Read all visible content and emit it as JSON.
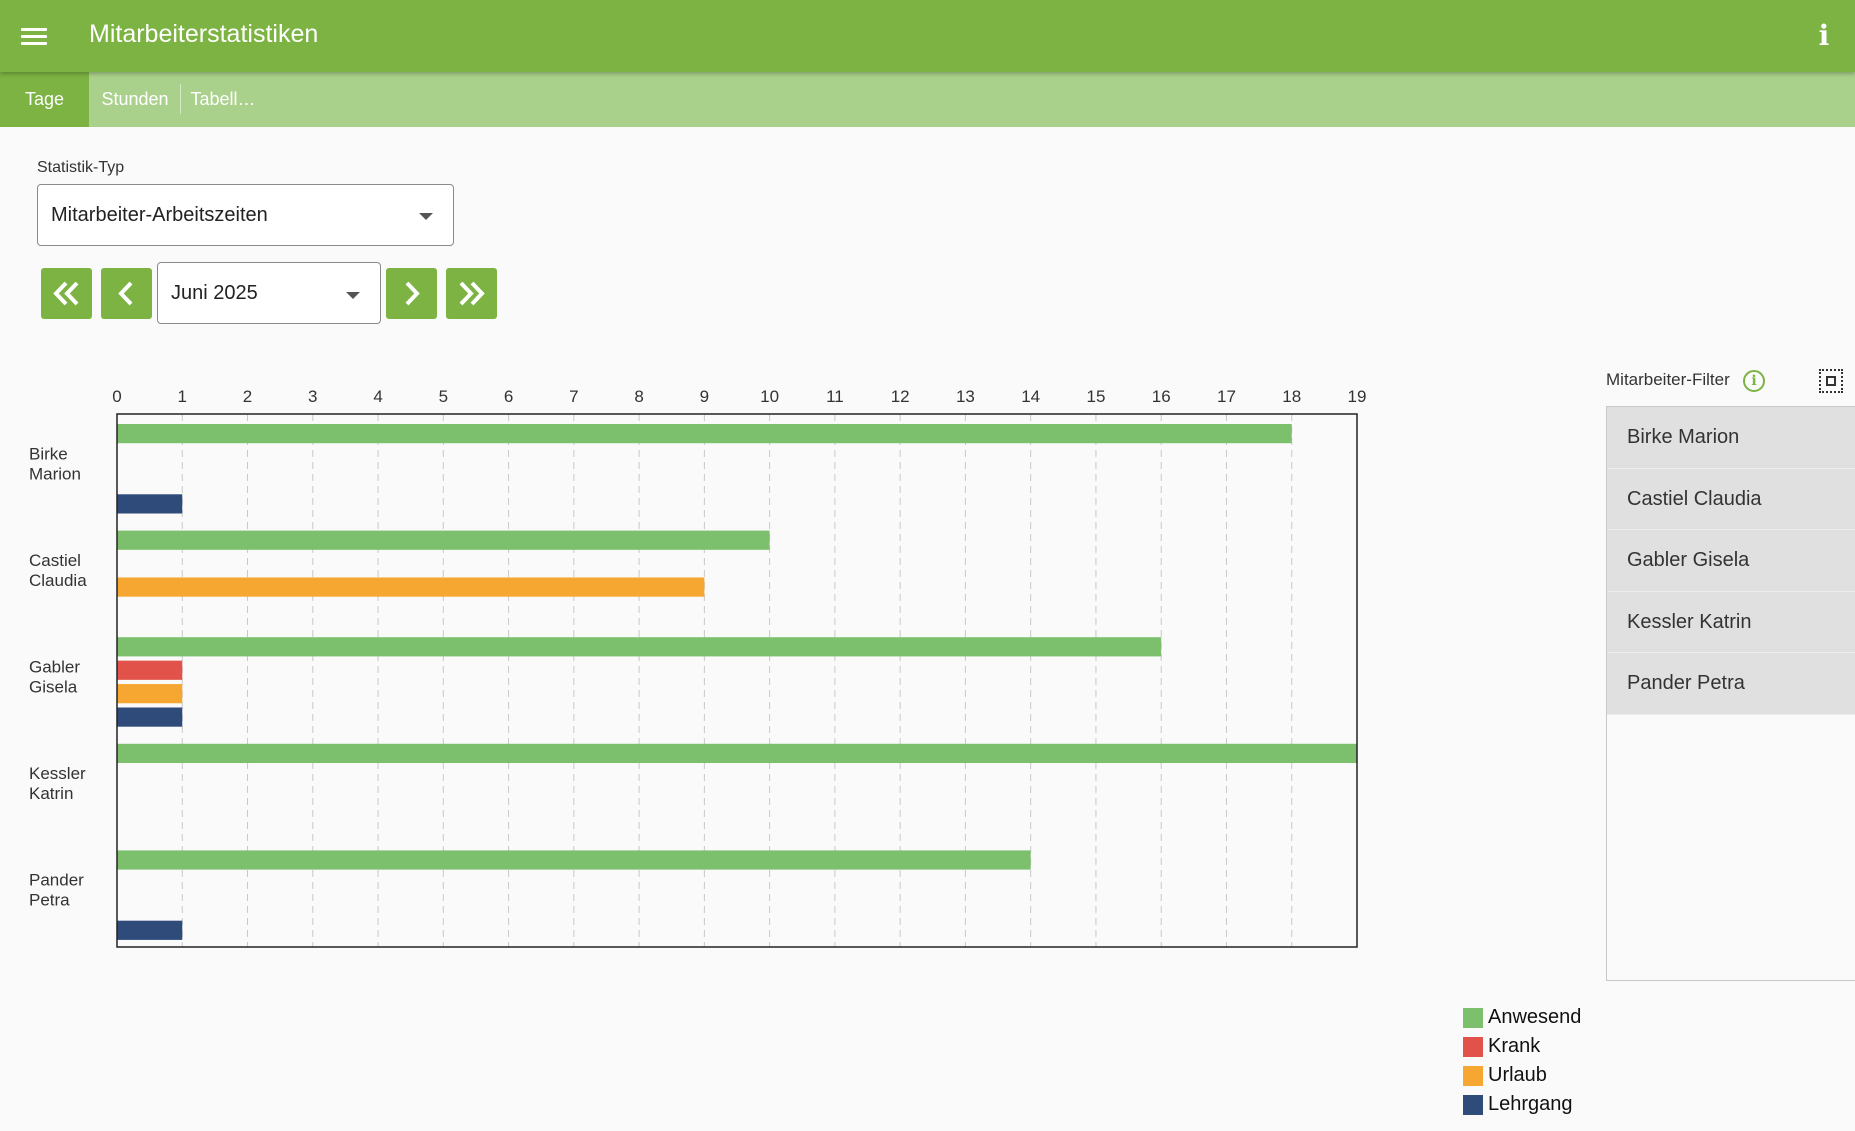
{
  "app": {
    "title": "Mitarbeiterstatistiken"
  },
  "tabs": [
    {
      "label": "Tage",
      "active": true
    },
    {
      "label": "Stunden",
      "active": false
    },
    {
      "label": "Tabell…",
      "active": false
    }
  ],
  "controls": {
    "stat_type_label": "Statistik-Typ",
    "stat_type_value": "Mitarbeiter-Arbeitszeiten",
    "month_value": "Juni 2025"
  },
  "filter": {
    "title": "Mitarbeiter-Filter",
    "items": [
      "Birke Marion",
      "Castiel Claudia",
      "Gabler Gisela",
      "Kessler Katrin",
      "Pander Petra"
    ]
  },
  "colors": {
    "accent": "#7cb342",
    "tabbar": "#aad18b",
    "anwesend": "#7cc06e",
    "krank": "#e0524a",
    "urlaub": "#f5a731",
    "lehrgang": "#2f4b7a"
  },
  "chart_data": {
    "type": "bar",
    "orientation": "horizontal",
    "xlim": [
      0,
      19
    ],
    "x_ticks": [
      "0",
      "1",
      "2",
      "3",
      "4",
      "5",
      "6",
      "7",
      "8",
      "9",
      "10",
      "11",
      "12",
      "13",
      "14",
      "15",
      "16",
      "17",
      "18",
      "19"
    ],
    "grid": "vertical-dashed",
    "legend_position": "bottom-right",
    "categories": [
      [
        "Birke",
        "Marion"
      ],
      [
        "Castiel",
        "Claudia"
      ],
      [
        "Gabler",
        "Gisela"
      ],
      [
        "Kessler",
        "Katrin"
      ],
      [
        "Pander",
        "Petra"
      ]
    ],
    "series": [
      {
        "name": "Anwesend",
        "color": "#7cc06e",
        "values": [
          18,
          10,
          16,
          19,
          14
        ]
      },
      {
        "name": "Krank",
        "color": "#e0524a",
        "values": [
          0,
          0,
          1,
          0,
          0
        ]
      },
      {
        "name": "Urlaub",
        "color": "#f5a731",
        "values": [
          0,
          9,
          1,
          0,
          0
        ]
      },
      {
        "name": "Lehrgang",
        "color": "#2f4b7a",
        "values": [
          1,
          0,
          1,
          0,
          1
        ]
      }
    ]
  }
}
